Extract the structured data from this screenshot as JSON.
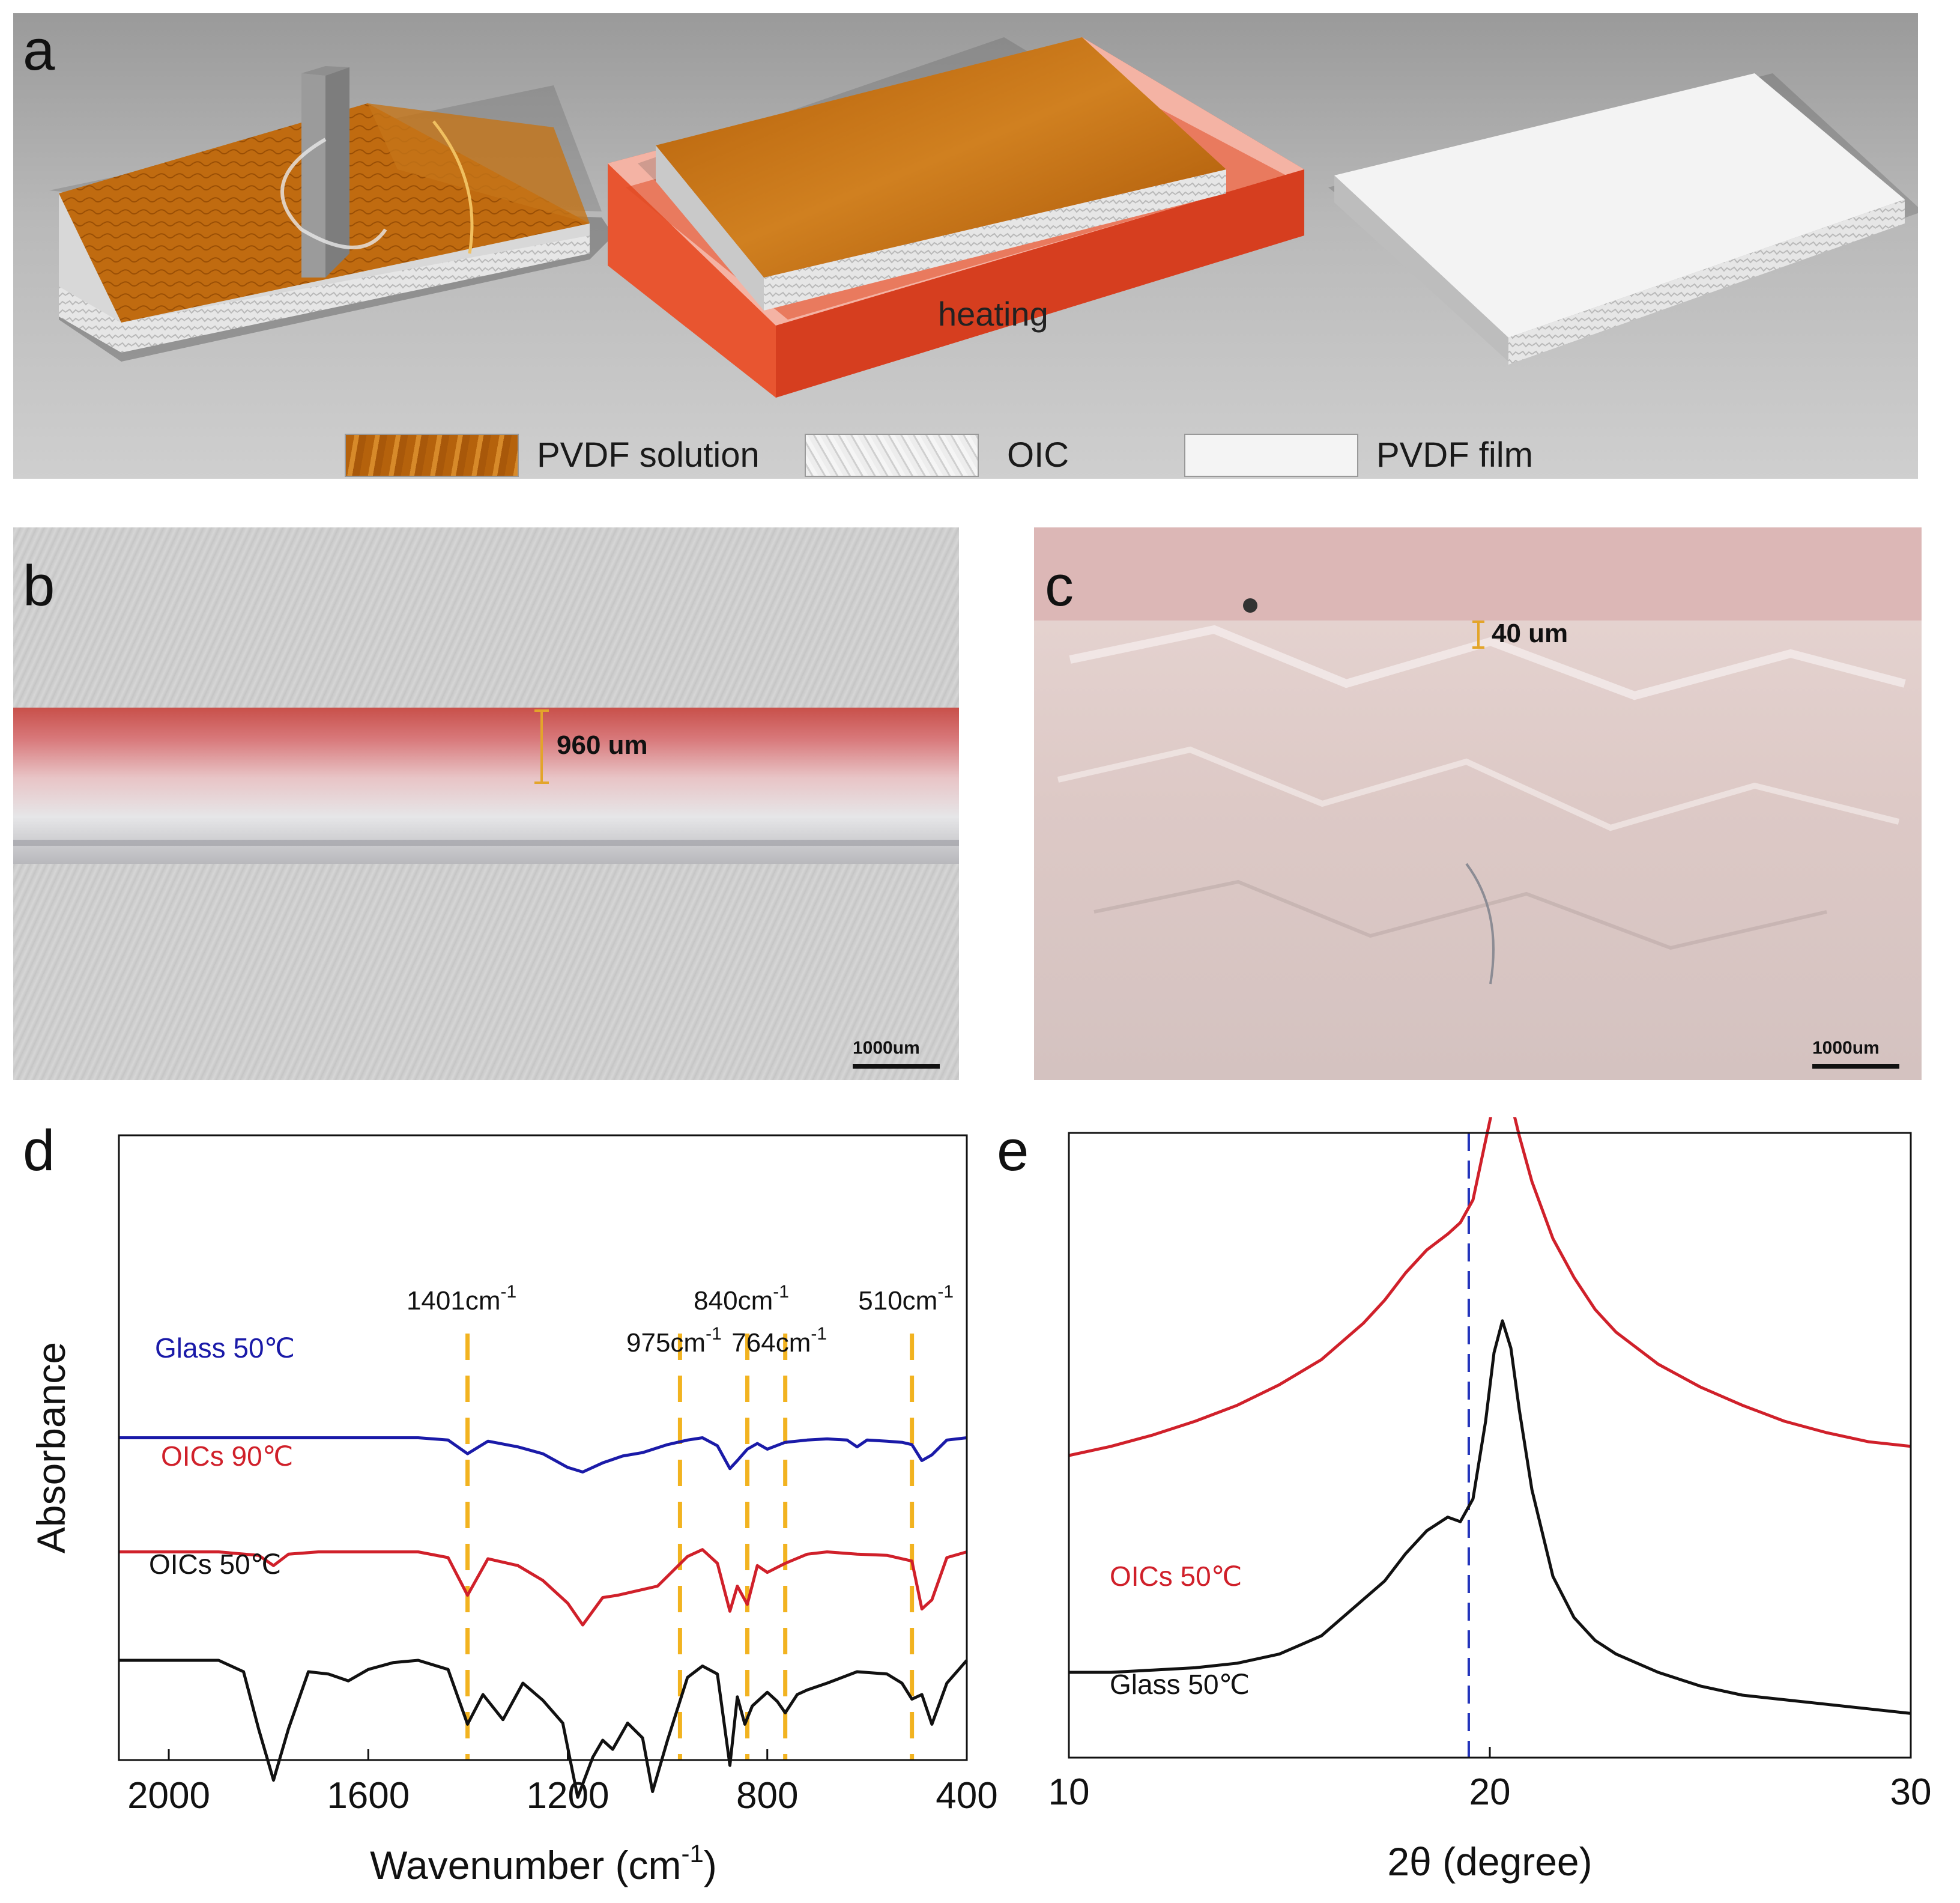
{
  "panels": {
    "a": {
      "letter": "a",
      "heating_label": "heating",
      "legend": [
        {
          "label": "PVDF solution",
          "color": "#b8650d"
        },
        {
          "label": "OIC",
          "color": "#e2e2e2"
        },
        {
          "label": "PVDF film",
          "color": "#f4f4f4"
        }
      ]
    },
    "b": {
      "letter": "b",
      "measure": "960 um",
      "scale": "1000um"
    },
    "c": {
      "letter": "c",
      "measure": "40 um",
      "scale": "1000um"
    },
    "d": {
      "letter": "d"
    },
    "e": {
      "letter": "e"
    }
  },
  "chart_data": [
    {
      "type": "line",
      "panel": "d",
      "xlabel": "Wavenumber (cm-1)",
      "ylabel": "Absorbance",
      "xlim": [
        2100,
        400
      ],
      "x_reversed": true,
      "xticks": [
        2000,
        1600,
        1200,
        800,
        400
      ],
      "y_ticks_shown": false,
      "peak_markers": [
        {
          "x": 1401,
          "label": "1401cm-1"
        },
        {
          "x": 975,
          "label": "975cm-1"
        },
        {
          "x": 840,
          "label": "840cm-1"
        },
        {
          "x": 764,
          "label": "764cm-1"
        },
        {
          "x": 510,
          "label": "510cm-1"
        }
      ],
      "marker_color": "#f2b320",
      "series": [
        {
          "name": "Glass 50℃",
          "color": "#1a1aa8",
          "offset": 2.35,
          "x": [
            2100,
            1900,
            1500,
            1440,
            1401,
            1360,
            1300,
            1250,
            1200,
            1170,
            1130,
            1090,
            1050,
            1000,
            960,
            930,
            900,
            875,
            860,
            840,
            820,
            800,
            764,
            720,
            680,
            640,
            620,
            600,
            560,
            530,
            510,
            490,
            470,
            440,
            400
          ],
          "y": [
            0,
            0,
            0,
            -0.02,
            -0.14,
            -0.03,
            -0.08,
            -0.14,
            -0.26,
            -0.3,
            -0.22,
            -0.16,
            -0.13,
            -0.06,
            -0.02,
            0,
            -0.07,
            -0.27,
            -0.2,
            -0.1,
            -0.05,
            -0.1,
            -0.04,
            -0.02,
            -0.01,
            -0.02,
            -0.08,
            -0.02,
            -0.03,
            -0.04,
            -0.06,
            -0.2,
            -0.15,
            -0.02,
            0
          ]
        },
        {
          "name": "OICs 90℃",
          "color": "#d0202a",
          "offset": 1.35,
          "x": [
            2100,
            1900,
            1820,
            1790,
            1760,
            1700,
            1500,
            1440,
            1401,
            1360,
            1300,
            1250,
            1200,
            1170,
            1130,
            1100,
            1060,
            1020,
            960,
            930,
            900,
            875,
            860,
            840,
            820,
            800,
            764,
            720,
            680,
            620,
            560,
            530,
            510,
            490,
            470,
            440,
            400
          ],
          "y": [
            0,
            0,
            -0.03,
            -0.12,
            -0.02,
            0,
            0,
            -0.05,
            -0.38,
            -0.06,
            -0.12,
            -0.25,
            -0.45,
            -0.64,
            -0.4,
            -0.38,
            -0.34,
            -0.3,
            -0.04,
            0.02,
            -0.1,
            -0.52,
            -0.3,
            -0.46,
            -0.12,
            -0.18,
            -0.1,
            -0.02,
            0,
            -0.02,
            -0.03,
            -0.06,
            -0.08,
            -0.5,
            -0.42,
            -0.05,
            0
          ]
        },
        {
          "name": "OICs 50℃",
          "color": "#111111",
          "offset": 0.4,
          "x": [
            2100,
            1900,
            1850,
            1820,
            1790,
            1760,
            1720,
            1680,
            1640,
            1600,
            1550,
            1500,
            1440,
            1401,
            1370,
            1330,
            1290,
            1250,
            1210,
            1180,
            1150,
            1130,
            1110,
            1080,
            1050,
            1030,
            1000,
            960,
            930,
            900,
            875,
            860,
            845,
            830,
            800,
            780,
            764,
            740,
            720,
            680,
            620,
            560,
            530,
            510,
            490,
            470,
            440,
            400
          ],
          "y": [
            0,
            0,
            -0.1,
            -0.6,
            -1.05,
            -0.6,
            -0.1,
            -0.12,
            -0.18,
            -0.08,
            -0.02,
            0,
            -0.08,
            -0.56,
            -0.3,
            -0.52,
            -0.2,
            -0.35,
            -0.55,
            -1.2,
            -0.85,
            -0.7,
            -0.78,
            -0.55,
            -0.68,
            -1.15,
            -0.7,
            -0.15,
            -0.05,
            -0.12,
            -0.92,
            -0.32,
            -0.56,
            -0.4,
            -0.28,
            -0.36,
            -0.46,
            -0.3,
            -0.26,
            -0.2,
            -0.1,
            -0.12,
            -0.2,
            -0.34,
            -0.3,
            -0.56,
            -0.2,
            0
          ]
        }
      ]
    },
    {
      "type": "line",
      "panel": "e",
      "xlabel": "2θ (degree)",
      "ylabel": "",
      "xlim": [
        10,
        30
      ],
      "xticks": [
        10,
        20,
        30
      ],
      "y_ticks_shown": false,
      "reference_line": {
        "x": 19.5,
        "color": "#2233bb",
        "style": "dashed"
      },
      "series": [
        {
          "name": "OICs 50℃",
          "color": "#d0202a",
          "offset": 1.15,
          "x": [
            10,
            11,
            12,
            13,
            14,
            15,
            16,
            17,
            17.5,
            18,
            18.5,
            19,
            19.3,
            19.6,
            19.9,
            20.1,
            20.3,
            20.5,
            20.7,
            21,
            21.5,
            22,
            22.5,
            23,
            24,
            25,
            26,
            27,
            28,
            29,
            30
          ],
          "y": [
            0,
            0.04,
            0.09,
            0.15,
            0.22,
            0.31,
            0.42,
            0.58,
            0.68,
            0.8,
            0.9,
            0.97,
            1.02,
            1.12,
            1.38,
            1.55,
            1.62,
            1.55,
            1.4,
            1.2,
            0.95,
            0.78,
            0.64,
            0.54,
            0.4,
            0.3,
            0.22,
            0.15,
            0.1,
            0.06,
            0.04
          ]
        },
        {
          "name": "Glass 50℃",
          "color": "#111111",
          "offset": 0,
          "x": [
            10,
            11,
            12,
            13,
            14,
            15,
            16,
            17,
            17.5,
            18,
            18.5,
            19,
            19.3,
            19.6,
            19.9,
            20.1,
            20.3,
            20.5,
            20.7,
            21,
            21.5,
            22,
            22.5,
            23,
            24,
            25,
            26,
            27,
            28,
            29,
            30
          ],
          "y": [
            0.2,
            0.2,
            0.21,
            0.22,
            0.24,
            0.28,
            0.36,
            0.52,
            0.6,
            0.72,
            0.82,
            0.88,
            0.86,
            0.96,
            1.3,
            1.6,
            1.74,
            1.62,
            1.35,
            1.0,
            0.62,
            0.44,
            0.34,
            0.28,
            0.2,
            0.14,
            0.1,
            0.08,
            0.06,
            0.04,
            0.02
          ]
        }
      ]
    }
  ]
}
